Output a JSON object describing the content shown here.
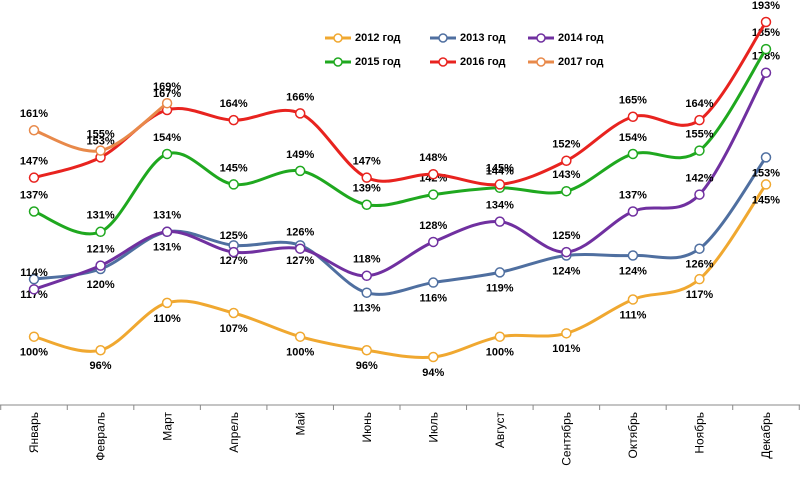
{
  "chart_data": {
    "type": "line",
    "categories": [
      "Январь",
      "Февраль",
      "Март",
      "Апрель",
      "Май",
      "Июнь",
      "Июль",
      "Август",
      "Сентябрь",
      "Октябрь",
      "Ноябрь",
      "Декабрь"
    ],
    "series": [
      {
        "name": "2012 год",
        "color": "#f0a830",
        "values": [
          100,
          96,
          110,
          107,
          100,
          96,
          94,
          100,
          101,
          111,
          117,
          145
        ],
        "value_labels": [
          "100%",
          "96%",
          "110%",
          "107%",
          "100%",
          "96%",
          "94%",
          "100%",
          "101%",
          "111%",
          "117%",
          "145%"
        ]
      },
      {
        "name": "2013 год",
        "color": "#4f6fa0",
        "values": [
          117,
          120,
          131,
          127,
          127,
          113,
          116,
          119,
          124,
          124,
          126,
          153
        ],
        "value_labels": [
          "117%",
          "120%",
          "131%",
          "127%",
          "127%",
          "113%",
          "116%",
          "119%",
          "124%",
          "124%",
          "126%",
          "153%"
        ]
      },
      {
        "name": "2014 год",
        "color": "#7030a0",
        "values": [
          114,
          121,
          131,
          125,
          126,
          118,
          128,
          134,
          125,
          137,
          142,
          178
        ],
        "value_labels": [
          "114%",
          "121%",
          "131%",
          "125%",
          "126%",
          "118%",
          "128%",
          "134%",
          "125%",
          "137%",
          "142%",
          "178%"
        ]
      },
      {
        "name": "2015 год",
        "color": "#1fa81f",
        "values": [
          137,
          131,
          154,
          145,
          149,
          139,
          142,
          144,
          143,
          154,
          155,
          185
        ],
        "value_labels": [
          "137%",
          "131%",
          "154%",
          "145%",
          "149%",
          "139%",
          "142%",
          "144%",
          "143%",
          "154%",
          "155%",
          "185%"
        ]
      },
      {
        "name": "2016 год",
        "color": "#e8231f",
        "values": [
          147,
          153,
          167,
          164,
          166,
          147,
          148,
          145,
          152,
          165,
          164,
          193
        ],
        "value_labels": [
          "147%",
          "153%",
          "167%",
          "164%",
          "166%",
          "147%",
          "148%",
          "145%",
          "152%",
          "165%",
          "164%",
          "193%"
        ]
      },
      {
        "name": "2017 год",
        "color": "#e8894a",
        "values": [
          161,
          155,
          169,
          null,
          null,
          null,
          null,
          null,
          null,
          null,
          null,
          null
        ],
        "value_labels": [
          "161%",
          "155%",
          "169%",
          null,
          null,
          null,
          null,
          null,
          null,
          null,
          null,
          null
        ]
      }
    ]
  }
}
